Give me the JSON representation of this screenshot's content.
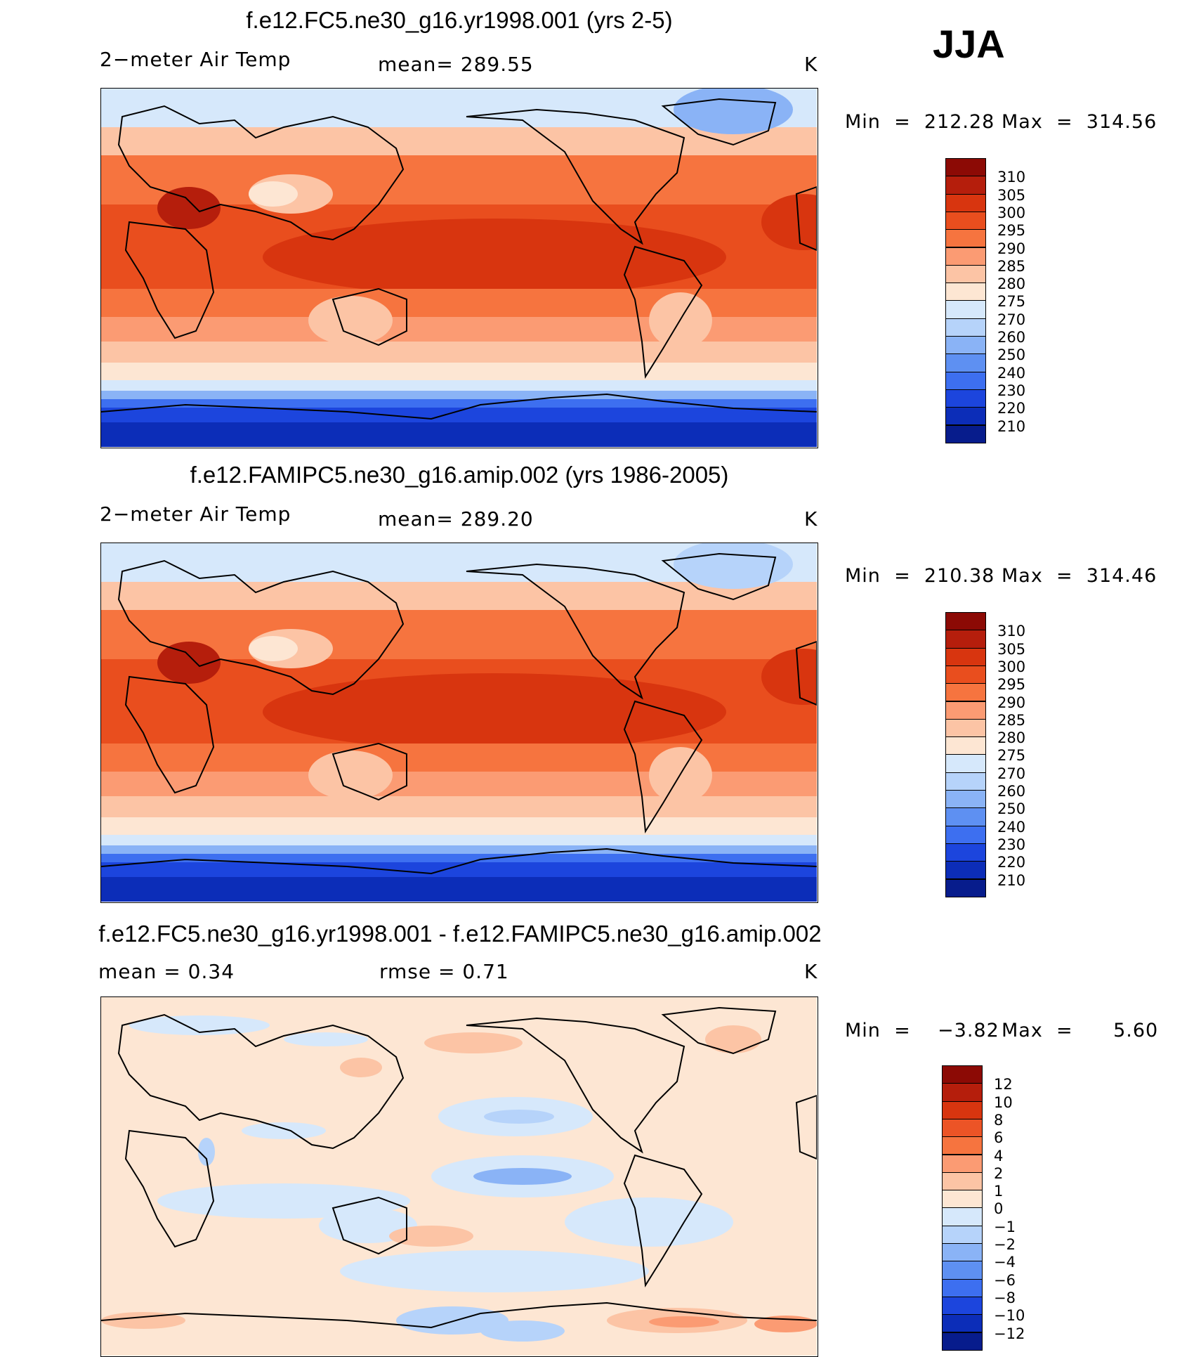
{
  "season_label": "JJA",
  "units": "K",
  "panels": [
    {
      "title": "f.e12.FC5.ne30_g16.yr1998.001 (yrs 2-5)",
      "variable": "2−meter Air Temp",
      "stat": "mean=  289.55",
      "min_label": "Min  =  212.28",
      "max_label": "Max  =  314.56",
      "palette": "abs"
    },
    {
      "title": "f.e12.FAMIPC5.ne30_g16.amip.002 (yrs 1986-2005)",
      "variable": "2−meter Air Temp",
      "stat": "mean=  289.20",
      "min_label": "Min  =  210.38",
      "max_label": "Max  =  314.46",
      "palette": "abs"
    },
    {
      "title": "f.e12.FC5.ne30_g16.yr1998.001 - f.e12.FAMIPC5.ne30_g16.amip.002",
      "variable": "mean  =     0.34",
      "stat": "rmse  =     0.71",
      "min_label": "Min  =    −3.82",
      "max_label": "Max  =      5.60",
      "palette": "diff"
    }
  ],
  "colorbars": {
    "abs": {
      "levels": [
        "310",
        "305",
        "300",
        "295",
        "290",
        "285",
        "280",
        "275",
        "270",
        "260",
        "250",
        "240",
        "230",
        "220",
        "210"
      ],
      "colors": [
        "#8c0a05",
        "#b51e0c",
        "#d8350f",
        "#e94e1e",
        "#f6743f",
        "#fb9b73",
        "#fcc4a5",
        "#fde6d3",
        "#d6e8fb",
        "#b6d3fa",
        "#8ab3f6",
        "#5e90f2",
        "#3d6ff0",
        "#1c45dd",
        "#0c2db8",
        "#071c8c"
      ]
    },
    "diff": {
      "levels": [
        "12",
        "10",
        "8",
        "6",
        "4",
        "2",
        "1",
        "0",
        "−1",
        "−2",
        "−4",
        "−6",
        "−8",
        "−10",
        "−12"
      ],
      "colors": [
        "#8c0a05",
        "#b51e0c",
        "#d8350f",
        "#ec5426",
        "#f6743f",
        "#fb9b73",
        "#fcc4a5",
        "#fde6d3",
        "#d6e8fb",
        "#b6d3fa",
        "#8ab3f6",
        "#5e90f2",
        "#3d6ff0",
        "#1c45dd",
        "#0c2db8",
        "#071c8c"
      ]
    }
  }
}
